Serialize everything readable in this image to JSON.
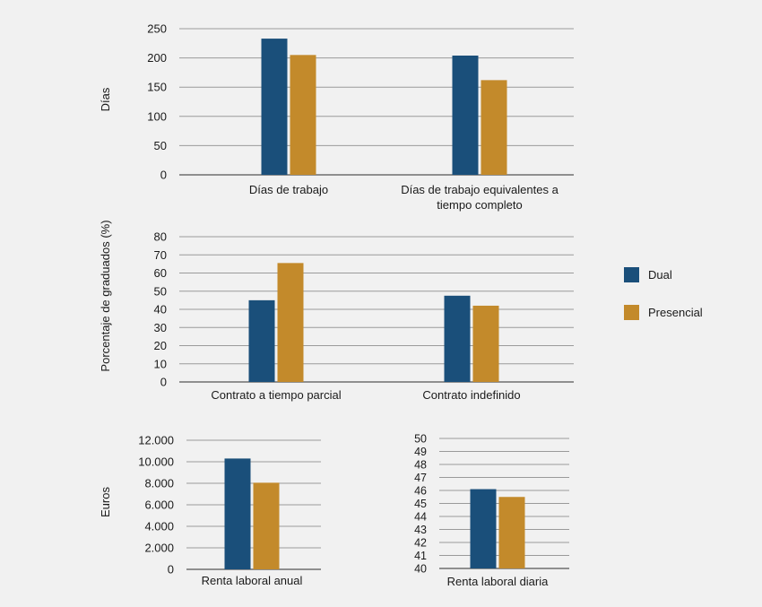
{
  "colors": {
    "dual": "#1a4f7a",
    "presencial": "#c38a2b",
    "grid": "#9a9a9a",
    "axis": "#555555"
  },
  "legend": [
    {
      "name": "Dual",
      "color": "#1a4f7a"
    },
    {
      "name": "Presencial",
      "color": "#c38a2b"
    }
  ],
  "chart_data": [
    {
      "type": "bar",
      "id": "dias",
      "title": "",
      "ylabel": "Días",
      "xlabel": "",
      "ylim": [
        0,
        250
      ],
      "yticks": [
        0,
        50,
        100,
        150,
        200,
        250
      ],
      "ytick_labels": [
        "0",
        "50",
        "100",
        "150",
        "200",
        "250"
      ],
      "grid": true,
      "categories": [
        [
          "Días de trabajo"
        ],
        [
          "Días de trabajo equivalentes a",
          "tiempo completo"
        ]
      ],
      "series": [
        {
          "name": "Dual",
          "values": [
            233,
            204
          ]
        },
        {
          "name": "Presencial",
          "values": [
            205,
            162
          ]
        }
      ]
    },
    {
      "type": "bar",
      "id": "contratos",
      "title": "",
      "ylabel": "Porcentaje de graduados (%)",
      "xlabel": "",
      "ylim": [
        0,
        80
      ],
      "yticks": [
        0,
        10,
        20,
        30,
        40,
        50,
        60,
        70,
        80
      ],
      "ytick_labels": [
        "0",
        "10",
        "20",
        "30",
        "40",
        "50",
        "60",
        "70",
        "80"
      ],
      "grid": true,
      "categories": [
        [
          "Contrato a tiempo parcial"
        ],
        [
          "Contrato indefinido"
        ]
      ],
      "series": [
        {
          "name": "Dual",
          "values": [
            45,
            47.5
          ]
        },
        {
          "name": "Presencial",
          "values": [
            65.5,
            42
          ]
        }
      ]
    },
    {
      "type": "bar",
      "id": "renta-anual",
      "title": "",
      "ylabel": "Euros",
      "xlabel": "",
      "ylim": [
        0,
        12000
      ],
      "yticks": [
        0,
        2000,
        4000,
        6000,
        8000,
        10000,
        12000
      ],
      "ytick_labels": [
        "0",
        "2.000",
        "4.000",
        "6.000",
        "8.000",
        "10.000",
        "12.000"
      ],
      "grid": true,
      "categories": [
        [
          "Renta laboral anual"
        ]
      ],
      "series": [
        {
          "name": "Dual",
          "values": [
            10300
          ]
        },
        {
          "name": "Presencial",
          "values": [
            8050
          ]
        }
      ]
    },
    {
      "type": "bar",
      "id": "renta-diaria",
      "title": "",
      "ylabel": "",
      "xlabel": "",
      "ylim": [
        40,
        50
      ],
      "yticks": [
        40,
        41,
        42,
        43,
        44,
        45,
        46,
        47,
        48,
        49,
        50
      ],
      "ytick_labels": [
        "40",
        "41",
        "42",
        "43",
        "44",
        "45",
        "46",
        "47",
        "48",
        "49",
        "50"
      ],
      "grid": true,
      "categories": [
        [
          "Renta laboral diaria"
        ]
      ],
      "series": [
        {
          "name": "Dual",
          "values": [
            46.1
          ]
        },
        {
          "name": "Presencial",
          "values": [
            45.5
          ]
        }
      ]
    }
  ]
}
